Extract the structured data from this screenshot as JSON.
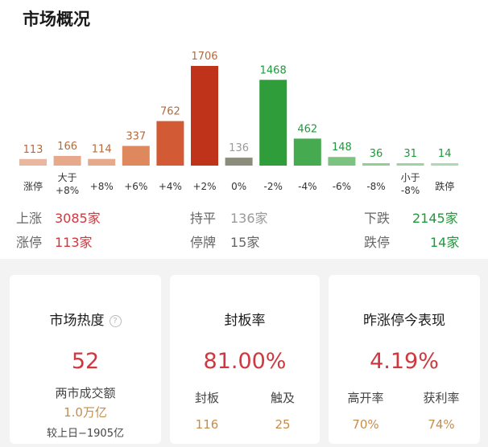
{
  "title": "市场概况",
  "chart_data": {
    "type": "bar",
    "categories": [
      "涨停",
      "大于\n+8%",
      "+8%",
      "+6%",
      "+4%",
      "+2%",
      "0%",
      "-2%",
      "-4%",
      "-6%",
      "-8%",
      "小于\n-8%",
      "跌停"
    ],
    "values": [
      113,
      166,
      114,
      337,
      762,
      1706,
      136,
      1468,
      462,
      148,
      36,
      31,
      14
    ],
    "colors": [
      "#e9b7a0",
      "#e6a98b",
      "#e6a98b",
      "#df875d",
      "#d25b35",
      "#c0331b",
      "#8c8c7a",
      "#2f9e3a",
      "#45aa50",
      "#7cc382",
      "#8fce95",
      "#9ad49f",
      "#a9dbad"
    ],
    "label_colors": [
      "#b56a3c",
      "#b56a3c",
      "#b56a3c",
      "#b56a3c",
      "#b56a3c",
      "#b56a3c",
      "#9a9a9a",
      "#1e9a3b",
      "#1e9a3b",
      "#1e9a3b",
      "#1e9a3b",
      "#1e9a3b",
      "#1e9a3b"
    ],
    "ylim": [
      0,
      1706
    ]
  },
  "stats": {
    "up_label": "上涨",
    "up_value": "3085家",
    "flat_label": "持平",
    "flat_value": "136家",
    "down_label": "下跌",
    "down_value": "2145家",
    "limit_up_label": "涨停",
    "limit_up_value": "113家",
    "halt_label": "停牌",
    "halt_value": "15家",
    "limit_down_label": "跌停",
    "limit_down_value": "14家"
  },
  "cards": {
    "heat": {
      "title": "市场热度",
      "value": "52",
      "turnover_label": "两市成交额",
      "turnover_value": "1.0万亿",
      "change": "较上日−1905亿"
    },
    "seal": {
      "title": "封板率",
      "value": "81.00%",
      "sealed_label": "封板",
      "sealed_value": "116",
      "touched_label": "触及",
      "touched_value": "25"
    },
    "yesterday": {
      "title": "昨涨停今表现",
      "value": "4.19%",
      "high_open_label": "高开率",
      "high_open_value": "70%",
      "profit_label": "获利率",
      "profit_value": "74%"
    }
  },
  "icons": {
    "help": "?"
  }
}
